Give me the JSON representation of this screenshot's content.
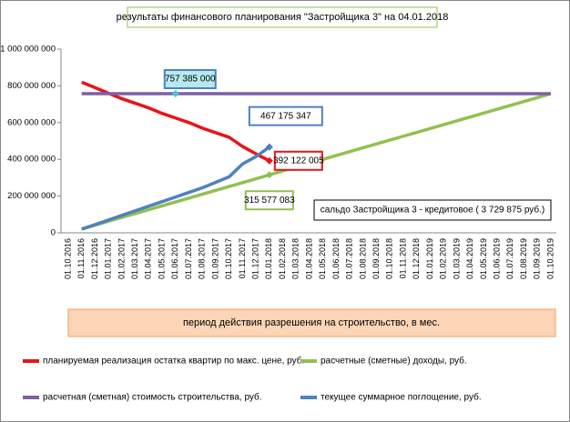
{
  "chart_data": {
    "type": "line",
    "title": "результаты финансового планирования \"Застройщика  3\" на 04.01.2018",
    "x_label": "период  действия разрешения на строительство, в мес.",
    "annotation": "сальдо Застройщика 3 - кредитовое ( 3 729 875 руб.)",
    "categories": [
      "01.10.2016",
      "01.11.2016",
      "01.12.2016",
      "01.01.2017",
      "01.02.2017",
      "01.03.2017",
      "01.04.2017",
      "01.05.2017",
      "01.06.2017",
      "01.07.2017",
      "01.08.2017",
      "01.09.2017",
      "01.10.2017",
      "01.11.2017",
      "01.12.2017",
      "01.01.2018",
      "01.02.2018",
      "01.03.2018",
      "01.04.2018",
      "01.05.2018",
      "01.06.2018",
      "01.07.2018",
      "01.08.2018",
      "01.09.2018",
      "01.10.2018",
      "01.11.2018",
      "01.12.2018",
      "01.01.2019",
      "01.02.2019",
      "01.03.2019",
      "01.04.2019",
      "01.05.2019",
      "01.06.2019",
      "01.07.2019",
      "01.08.2019",
      "01.09.2019",
      "01.10.2019"
    ],
    "ylim": [
      0,
      1000000000
    ],
    "yticks": [
      {
        "value": 0,
        "label": "0"
      },
      {
        "value": 200000000,
        "label": "200 000 000"
      },
      {
        "value": 400000000,
        "label": "400 000 000"
      },
      {
        "value": 600000000,
        "label": "600 000 000"
      },
      {
        "value": 800000000,
        "label": "800 000 000"
      },
      {
        "value": 1000000000,
        "label": "1 000 000 000"
      }
    ],
    "series": [
      {
        "name": "планируемая реализация остатка квартир по макс. цене, руб.",
        "color": "#e8141a",
        "values": [
          null,
          820000000,
          790000000,
          760000000,
          730000000,
          705000000,
          680000000,
          650000000,
          625000000,
          600000000,
          570000000,
          545000000,
          520000000,
          470000000,
          430000000,
          392122005,
          null,
          null,
          null,
          null,
          null,
          null,
          null,
          null,
          null,
          null,
          null,
          null,
          null,
          null,
          null,
          null,
          null,
          null,
          null,
          null,
          null
        ],
        "value_labels": [
          null,
          null,
          null,
          null,
          null,
          null,
          null,
          null,
          null,
          null,
          null,
          null,
          null,
          null,
          null,
          "392 122 005",
          null,
          null,
          null,
          null,
          null,
          null,
          null,
          null,
          null,
          null,
          null,
          null,
          null,
          null,
          null,
          null,
          null,
          null,
          null,
          null,
          null
        ]
      },
      {
        "name": "расчетные (сметные) доходы, руб.",
        "color": "#92c050",
        "values": [
          null,
          21000000,
          42000000,
          63000000,
          84000000,
          105000000,
          126000000,
          147000000,
          168000000,
          189000000,
          210000000,
          231000000,
          252000000,
          273000000,
          294000000,
          315577083,
          337000000,
          358000000,
          379000000,
          400000000,
          421000000,
          442000000,
          463000000,
          484000000,
          505000000,
          526000000,
          547000000,
          568000000,
          589000000,
          610000000,
          631000000,
          652000000,
          673000000,
          694000000,
          715000000,
          736000000,
          757385000
        ],
        "value_labels": [
          null,
          null,
          null,
          null,
          null,
          null,
          null,
          null,
          null,
          null,
          null,
          null,
          null,
          null,
          null,
          "315 577 083",
          null,
          null,
          null,
          null,
          null,
          null,
          null,
          null,
          null,
          null,
          null,
          null,
          null,
          null,
          null,
          null,
          null,
          null,
          null,
          null,
          null
        ]
      },
      {
        "name": "расчетная (сметная) стоимость строительства, руб.",
        "color": "#7f5fa6",
        "values": [
          null,
          757385000,
          757385000,
          757385000,
          757385000,
          757385000,
          757385000,
          757385000,
          757385000,
          757385000,
          757385000,
          757385000,
          757385000,
          757385000,
          757385000,
          757385000,
          757385000,
          757385000,
          757385000,
          757385000,
          757385000,
          757385000,
          757385000,
          757385000,
          757385000,
          757385000,
          757385000,
          757385000,
          757385000,
          757385000,
          757385000,
          757385000,
          757385000,
          757385000,
          757385000,
          757385000,
          757385000
        ],
        "value_labels": [
          null,
          null,
          null,
          null,
          null,
          null,
          null,
          null,
          "757 385 000",
          null,
          null,
          null,
          null,
          null,
          null,
          null,
          null,
          null,
          null,
          null,
          null,
          null,
          null,
          null,
          null,
          null,
          null,
          null,
          null,
          null,
          null,
          null,
          null,
          null,
          null,
          null,
          null
        ]
      },
      {
        "name": "текущее суммарное поглощение, руб.",
        "color": "#4f81bd",
        "values": [
          null,
          20000000,
          45000000,
          70000000,
          95000000,
          120000000,
          145000000,
          170000000,
          195000000,
          220000000,
          245000000,
          275000000,
          305000000,
          375000000,
          415000000,
          467175347,
          null,
          null,
          null,
          null,
          null,
          null,
          null,
          null,
          null,
          null,
          null,
          null,
          null,
          null,
          null,
          null,
          null,
          null,
          null,
          null,
          null
        ],
        "value_labels": [
          null,
          null,
          null,
          null,
          null,
          null,
          null,
          null,
          null,
          null,
          null,
          null,
          null,
          null,
          null,
          "467 175 347",
          null,
          null,
          null,
          null,
          null,
          null,
          null,
          null,
          null,
          null,
          null,
          null,
          null,
          null,
          null,
          null,
          null,
          null,
          null,
          null,
          null
        ]
      }
    ]
  }
}
